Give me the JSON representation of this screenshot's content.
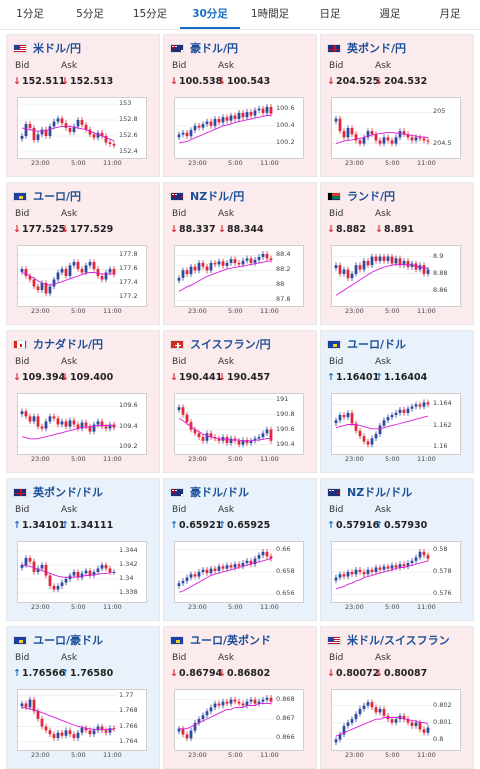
{
  "tabs": [
    "1分足",
    "5分足",
    "15分足",
    "30分足",
    "1時間足",
    "日足",
    "週足",
    "月足"
  ],
  "active_tab": 3,
  "labels": {
    "bid": "Bid",
    "ask": "Ask"
  },
  "x_ticks": [
    "23:00",
    "5:00",
    "11:00"
  ],
  "colors": {
    "down_bg": "#fcebed",
    "up_bg": "#e9f2fb",
    "down_arrow": "#d9282f",
    "up_arrow": "#1a6fc4",
    "pair_text": "#1a4f97",
    "candle_up": "#2e4a9e",
    "candle_down": "#e0283a",
    "ma": "#d91ed9"
  },
  "cards": [
    {
      "pair": "米ドル/円",
      "flag": "us",
      "dir": "down",
      "bid": "152.511",
      "ask": "152.513",
      "chart_data": {
        "type": "candlestick",
        "yticks": [
          "153",
          "152.8",
          "152.6",
          "152.4"
        ],
        "ylim": [
          152.35,
          153.05
        ],
        "closes": [
          152.6,
          152.75,
          152.7,
          152.55,
          152.62,
          152.68,
          152.6,
          152.72,
          152.78,
          152.82,
          152.76,
          152.7,
          152.65,
          152.72,
          152.8,
          152.74,
          152.68,
          152.62,
          152.58,
          152.64,
          152.6,
          152.52,
          152.5,
          152.48
        ],
        "ma": [
          152.7,
          152.69,
          152.68,
          152.67,
          152.66,
          152.66,
          152.67,
          152.68,
          152.7,
          152.71,
          152.72,
          152.72,
          152.72,
          152.71,
          152.7,
          152.69,
          152.68,
          152.66,
          152.64,
          152.62,
          152.6,
          152.58,
          152.56,
          152.54
        ]
      }
    },
    {
      "pair": "豪ドル/円",
      "flag": "au",
      "dir": "down",
      "bid": "100.538",
      "ask": "100.543",
      "chart_data": {
        "type": "candlestick",
        "yticks": [
          "100.6",
          "100.4",
          "100.2"
        ],
        "ylim": [
          100.05,
          100.7
        ],
        "closes": [
          100.3,
          100.32,
          100.28,
          100.35,
          100.4,
          100.38,
          100.42,
          100.45,
          100.4,
          100.48,
          100.44,
          100.5,
          100.46,
          100.52,
          100.48,
          100.55,
          100.5,
          100.56,
          100.52,
          100.58,
          100.6,
          100.55,
          100.62,
          100.54
        ],
        "ma": [
          100.2,
          100.21,
          100.22,
          100.24,
          100.26,
          100.28,
          100.3,
          100.32,
          100.34,
          100.36,
          100.38,
          100.4,
          100.41,
          100.42,
          100.44,
          100.45,
          100.46,
          100.47,
          100.48,
          100.49,
          100.5,
          100.51,
          100.52,
          100.52
        ]
      }
    },
    {
      "pair": "英ポンド/円",
      "flag": "uk",
      "dir": "down",
      "bid": "204.525",
      "ask": "204.532",
      "chart_data": {
        "type": "candlestick",
        "yticks": [
          "205",
          "204.5"
        ],
        "ylim": [
          204.3,
          205.2
        ],
        "closes": [
          204.9,
          204.7,
          204.6,
          204.75,
          204.65,
          204.55,
          204.5,
          204.6,
          204.7,
          204.65,
          204.55,
          204.5,
          204.6,
          204.55,
          204.5,
          204.6,
          204.7,
          204.65,
          204.6,
          204.55,
          204.6,
          204.58,
          204.55,
          204.53
        ],
        "ma": [
          204.5,
          204.52,
          204.54,
          204.55,
          204.56,
          204.57,
          204.58,
          204.6,
          204.62,
          204.64,
          204.65,
          204.66,
          204.67,
          204.68,
          204.68,
          204.67,
          204.66,
          204.65,
          204.64,
          204.63,
          204.62,
          204.61,
          204.6,
          204.6
        ]
      }
    },
    {
      "pair": "ユーロ/円",
      "flag": "eu",
      "dir": "down",
      "bid": "177.525",
      "ask": "177.529",
      "chart_data": {
        "type": "candlestick",
        "yticks": [
          "177.8",
          "177.6",
          "177.4",
          "177.2"
        ],
        "ylim": [
          177.1,
          177.9
        ],
        "closes": [
          177.6,
          177.5,
          177.45,
          177.35,
          177.3,
          177.4,
          177.25,
          177.35,
          177.45,
          177.55,
          177.6,
          177.5,
          177.65,
          177.7,
          177.6,
          177.55,
          177.65,
          177.7,
          177.6,
          177.5,
          177.45,
          177.55,
          177.6,
          177.52
        ],
        "ma": [
          177.55,
          177.53,
          177.5,
          177.47,
          177.43,
          177.4,
          177.38,
          177.37,
          177.38,
          177.4,
          177.42,
          177.44,
          177.46,
          177.48,
          177.5,
          177.52,
          177.54,
          177.55,
          177.55,
          177.54,
          177.53,
          177.53,
          177.53,
          177.53
        ]
      }
    },
    {
      "pair": "NZドル/円",
      "flag": "nz",
      "dir": "down",
      "bid": "88.337",
      "ask": "88.344",
      "chart_data": {
        "type": "candlestick",
        "yticks": [
          "88.4",
          "88.2",
          "88",
          "87.8"
        ],
        "ylim": [
          87.75,
          88.5
        ],
        "closes": [
          88.1,
          88.2,
          88.15,
          88.25,
          88.2,
          88.3,
          88.25,
          88.2,
          88.3,
          88.28,
          88.32,
          88.26,
          88.3,
          88.35,
          88.3,
          88.28,
          88.33,
          88.36,
          88.3,
          88.34,
          88.38,
          88.42,
          88.36,
          88.34
        ],
        "ma": [
          87.92,
          87.95,
          87.98,
          88.0,
          88.03,
          88.06,
          88.09,
          88.12,
          88.14,
          88.16,
          88.18,
          88.2,
          88.22,
          88.23,
          88.24,
          88.25,
          88.26,
          88.27,
          88.28,
          88.29,
          88.3,
          88.31,
          88.32,
          88.33
        ]
      }
    },
    {
      "pair": "ランド/円",
      "flag": "za",
      "dir": "down",
      "bid": "8.882",
      "ask": "8.891",
      "chart_data": {
        "type": "candlestick",
        "yticks": [
          "8.9",
          "8.88",
          "8.86"
        ],
        "ylim": [
          8.845,
          8.91
        ],
        "closes": [
          8.89,
          8.88,
          8.885,
          8.875,
          8.88,
          8.89,
          8.885,
          8.895,
          8.89,
          8.9,
          8.895,
          8.9,
          8.895,
          8.9,
          8.892,
          8.898,
          8.89,
          8.895,
          8.888,
          8.892,
          8.885,
          8.89,
          8.88,
          8.885
        ],
        "ma": [
          8.855,
          8.858,
          8.861,
          8.864,
          8.867,
          8.87,
          8.873,
          8.876,
          8.879,
          8.882,
          8.884,
          8.886,
          8.888,
          8.889,
          8.89,
          8.891,
          8.891,
          8.891,
          8.891,
          8.89,
          8.889,
          8.888,
          8.887,
          8.886
        ]
      }
    },
    {
      "pair": "カナダドル/円",
      "flag": "ca",
      "dir": "down",
      "bid": "109.394",
      "ask": "109.400",
      "chart_data": {
        "type": "candlestick",
        "yticks": [
          "109.6",
          "109.4",
          "109.2"
        ],
        "ylim": [
          109.15,
          109.7
        ],
        "closes": [
          109.55,
          109.5,
          109.45,
          109.5,
          109.4,
          109.38,
          109.45,
          109.5,
          109.48,
          109.42,
          109.45,
          109.4,
          109.46,
          109.42,
          109.38,
          109.44,
          109.4,
          109.35,
          109.42,
          109.45,
          109.4,
          109.38,
          109.42,
          109.39
        ],
        "ma": [
          109.3,
          109.29,
          109.28,
          109.28,
          109.28,
          109.29,
          109.3,
          109.31,
          109.32,
          109.33,
          109.34,
          109.35,
          109.36,
          109.37,
          109.38,
          109.39,
          109.39,
          109.4,
          109.4,
          109.41,
          109.41,
          109.41,
          109.41,
          109.41
        ]
      }
    },
    {
      "pair": "スイスフラン/円",
      "flag": "ch",
      "dir": "down",
      "bid": "190.441",
      "ask": "190.457",
      "chart_data": {
        "type": "candlestick",
        "yticks": [
          "191",
          "190.8",
          "190.6",
          "190.4"
        ],
        "ylim": [
          190.3,
          191.05
        ],
        "closes": [
          190.9,
          190.8,
          190.7,
          190.6,
          190.55,
          190.5,
          190.45,
          190.55,
          190.5,
          190.48,
          190.45,
          190.5,
          190.42,
          190.48,
          190.45,
          190.4,
          190.46,
          190.42,
          190.45,
          190.48,
          190.5,
          190.55,
          190.6,
          190.45
        ],
        "ma": [
          190.75,
          190.72,
          190.68,
          190.64,
          190.6,
          190.57,
          190.54,
          190.52,
          190.5,
          190.49,
          190.48,
          190.47,
          190.47,
          190.46,
          190.46,
          190.46,
          190.45,
          190.45,
          190.45,
          190.46,
          190.46,
          190.47,
          190.48,
          190.48
        ]
      }
    },
    {
      "pair": "ユーロ/ドル",
      "flag": "eu-us",
      "dir": "up",
      "bid": "1.16401",
      "ask": "1.16404",
      "chart_data": {
        "type": "candlestick",
        "yticks": [
          "1.164",
          "1.162",
          "1.16"
        ],
        "ylim": [
          1.1595,
          1.1648
        ],
        "closes": [
          1.1625,
          1.163,
          1.1628,
          1.1632,
          1.1622,
          1.1615,
          1.161,
          1.1605,
          1.1602,
          1.1608,
          1.1612,
          1.162,
          1.1625,
          1.1628,
          1.163,
          1.1632,
          1.1635,
          1.1632,
          1.1636,
          1.1638,
          1.164,
          1.1638,
          1.1642,
          1.164
        ],
        "ma": [
          1.1618,
          1.1619,
          1.162,
          1.1621,
          1.1621,
          1.1621,
          1.162,
          1.1619,
          1.1618,
          1.1617,
          1.1617,
          1.1617,
          1.1618,
          1.1619,
          1.162,
          1.1621,
          1.1622,
          1.1623,
          1.1624,
          1.1625,
          1.1626,
          1.1627,
          1.1628,
          1.1629
        ]
      }
    },
    {
      "pair": "英ポンド/ドル",
      "flag": "uk-us",
      "dir": "up",
      "bid": "1.34101",
      "ask": "1.34111",
      "chart_data": {
        "type": "candlestick",
        "yticks": [
          "1.344",
          "1.342",
          "1.34",
          "1.338"
        ],
        "ylim": [
          1.337,
          1.345
        ],
        "closes": [
          1.342,
          1.343,
          1.3425,
          1.341,
          1.3415,
          1.342,
          1.3405,
          1.339,
          1.3385,
          1.339,
          1.3395,
          1.34,
          1.3405,
          1.341,
          1.3402,
          1.3408,
          1.3412,
          1.3405,
          1.341,
          1.3415,
          1.342,
          1.3415,
          1.341,
          1.341
        ],
        "ma": [
          1.342,
          1.3419,
          1.3418,
          1.3416,
          1.3414,
          1.3412,
          1.341,
          1.3408,
          1.3406,
          1.3404,
          1.3403,
          1.3402,
          1.3402,
          1.3403,
          1.3403,
          1.3404,
          1.3405,
          1.3405,
          1.3406,
          1.3407,
          1.3408,
          1.3408,
          1.3409,
          1.3409
        ]
      }
    },
    {
      "pair": "豪ドル/ドル",
      "flag": "au-us",
      "dir": "up",
      "bid": "0.65921",
      "ask": "0.65925",
      "chart_data": {
        "type": "candlestick",
        "yticks": [
          "0.66",
          "0.658",
          "0.656"
        ],
        "ylim": [
          0.6555,
          0.6605
        ],
        "closes": [
          0.657,
          0.6572,
          0.6575,
          0.6578,
          0.6576,
          0.658,
          0.6582,
          0.6579,
          0.6583,
          0.6581,
          0.6585,
          0.6583,
          0.6586,
          0.6584,
          0.6587,
          0.6585,
          0.6588,
          0.659,
          0.6587,
          0.6592,
          0.6595,
          0.6598,
          0.6594,
          0.6592
        ],
        "ma": [
          0.6562,
          0.6563,
          0.6565,
          0.6567,
          0.6569,
          0.6571,
          0.6573,
          0.6575,
          0.6577,
          0.6578,
          0.6579,
          0.658,
          0.6581,
          0.6582,
          0.6583,
          0.6584,
          0.6585,
          0.6586,
          0.6587,
          0.6588,
          0.6589,
          0.659,
          0.6591,
          0.6592
        ]
      }
    },
    {
      "pair": "NZドル/ドル",
      "flag": "nz-us",
      "dir": "up",
      "bid": "0.57916",
      "ask": "0.57930",
      "chart_data": {
        "type": "candlestick",
        "yticks": [
          "0.58",
          "0.578",
          "0.576"
        ],
        "ylim": [
          0.5755,
          0.5805
        ],
        "closes": [
          0.5775,
          0.5778,
          0.5776,
          0.578,
          0.5778,
          0.5782,
          0.578,
          0.5778,
          0.5782,
          0.578,
          0.5784,
          0.5782,
          0.5785,
          0.5783,
          0.5786,
          0.5784,
          0.5787,
          0.5785,
          0.5788,
          0.579,
          0.5793,
          0.5798,
          0.5795,
          0.5792
        ],
        "ma": [
          0.5765,
          0.5766,
          0.5767,
          0.5769,
          0.577,
          0.5772,
          0.5773,
          0.5775,
          0.5776,
          0.5777,
          0.5778,
          0.5779,
          0.578,
          0.5781,
          0.5782,
          0.5783,
          0.5784,
          0.5784,
          0.5785,
          0.5786,
          0.5787,
          0.5788,
          0.5789,
          0.579
        ]
      }
    },
    {
      "pair": "ユーロ/豪ドル",
      "flag": "eu-au",
      "dir": "up",
      "bid": "1.76566",
      "ask": "1.76580",
      "chart_data": {
        "type": "candlestick",
        "yticks": [
          "1.77",
          "1.768",
          "1.766",
          "1.764"
        ],
        "ylim": [
          1.7632,
          1.7705
        ],
        "closes": [
          1.769,
          1.7685,
          1.7695,
          1.768,
          1.767,
          1.766,
          1.7655,
          1.765,
          1.7645,
          1.7652,
          1.7648,
          1.7655,
          1.765,
          1.7645,
          1.7652,
          1.7658,
          1.7655,
          1.765,
          1.7655,
          1.766,
          1.7655,
          1.7652,
          1.7658,
          1.7657
        ],
        "ma": [
          1.7685,
          1.7684,
          1.7683,
          1.7682,
          1.768,
          1.7678,
          1.7676,
          1.7674,
          1.7672,
          1.767,
          1.7668,
          1.7666,
          1.7664,
          1.7662,
          1.766,
          1.7659,
          1.7658,
          1.7657,
          1.7656,
          1.7656,
          1.7656,
          1.7656,
          1.7656,
          1.7656
        ]
      }
    },
    {
      "pair": "ユーロ/英ポンド",
      "flag": "eu-uk",
      "dir": "down",
      "bid": "0.86794",
      "ask": "0.86802",
      "chart_data": {
        "type": "candlestick",
        "yticks": [
          "0.868",
          "0.867",
          "0.866"
        ],
        "ylim": [
          0.8655,
          0.8684
        ],
        "closes": [
          0.8665,
          0.8662,
          0.866,
          0.8664,
          0.8668,
          0.867,
          0.8672,
          0.8674,
          0.8676,
          0.8678,
          0.8677,
          0.8679,
          0.8678,
          0.868,
          0.8679,
          0.8678,
          0.8677,
          0.8679,
          0.868,
          0.8678,
          0.8679,
          0.868,
          0.8681,
          0.8679
        ],
        "ma": [
          0.8665,
          0.8665,
          0.8665,
          0.8666,
          0.8667,
          0.8668,
          0.8669,
          0.867,
          0.8671,
          0.8672,
          0.8673,
          0.8674,
          0.8675,
          0.8675,
          0.8676,
          0.8676,
          0.8676,
          0.8677,
          0.8677,
          0.8677,
          0.8678,
          0.8678,
          0.8678,
          0.8678
        ]
      }
    },
    {
      "pair": "米ドル/スイスフラン",
      "flag": "us-ch",
      "dir": "down",
      "bid": "0.80072",
      "ask": "0.80087",
      "chart_data": {
        "type": "candlestick",
        "yticks": [
          "0.802",
          "0.801",
          "0.8"
        ],
        "ylim": [
          0.7995,
          0.8028
        ],
        "closes": [
          0.8,
          0.8003,
          0.8008,
          0.801,
          0.8012,
          0.8015,
          0.8018,
          0.802,
          0.8022,
          0.8019,
          0.8016,
          0.8018,
          0.8014,
          0.8012,
          0.801,
          0.8012,
          0.8014,
          0.8012,
          0.801,
          0.8008,
          0.801,
          0.8006,
          0.8004,
          0.8007
        ],
        "ma": [
          0.8002,
          0.8003,
          0.8004,
          0.8005,
          0.8006,
          0.8007,
          0.8008,
          0.8009,
          0.801,
          0.8011,
          0.8012,
          0.8012,
          0.8013,
          0.8013,
          0.8013,
          0.8013,
          0.8013,
          0.8012,
          0.8012,
          0.8011,
          0.8011,
          0.801,
          0.801,
          0.8009
        ]
      }
    }
  ]
}
